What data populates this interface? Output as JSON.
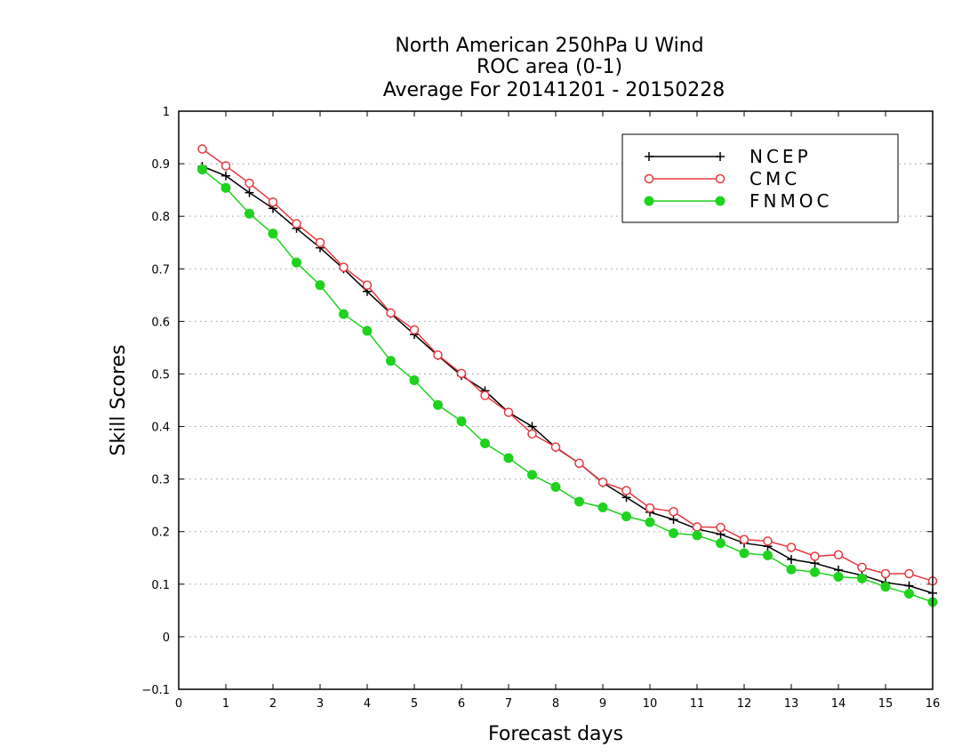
{
  "chart_data": {
    "type": "line",
    "title": [
      "North American 250hPa U Wind",
      "ROC area (0-1)",
      "Average For 20141201 - 20150228"
    ],
    "xlabel": "Forecast days",
    "ylabel": "Skill Scores",
    "xlim": [
      0,
      16
    ],
    "ylim": [
      -0.1,
      1
    ],
    "xticks": [
      0,
      1,
      2,
      3,
      4,
      5,
      6,
      7,
      8,
      9,
      10,
      11,
      12,
      13,
      14,
      15,
      16
    ],
    "yticks": [
      -0.1,
      0,
      0.1,
      0.2,
      0.3,
      0.4,
      0.5,
      0.6,
      0.7,
      0.8,
      0.9,
      1
    ],
    "ytick_labels": [
      "−0.1",
      "0",
      "0.1",
      "0.2",
      "0.3",
      "0.4",
      "0.5",
      "0.6",
      "0.7",
      "0.8",
      "0.9",
      "1"
    ],
    "grid": "horizontal dotted",
    "legend_position": "top-right",
    "x": [
      0.5,
      1.0,
      1.5,
      2.0,
      2.5,
      3.0,
      3.5,
      4.0,
      4.5,
      5.0,
      5.5,
      6.0,
      6.5,
      7.0,
      7.5,
      8.0,
      8.5,
      9.0,
      9.5,
      10.0,
      10.5,
      11.0,
      11.5,
      12.0,
      12.5,
      13.0,
      13.5,
      14.0,
      14.5,
      15.0,
      15.5,
      16.0
    ],
    "series": [
      {
        "name": "NCEP",
        "color": "#000000",
        "marker": "plus",
        "values": [
          0.895,
          0.877,
          0.845,
          0.815,
          0.777,
          0.74,
          0.7,
          0.657,
          0.615,
          0.575,
          0.535,
          0.497,
          0.468,
          0.427,
          0.4,
          0.36,
          0.33,
          0.293,
          0.265,
          0.237,
          0.223,
          0.205,
          0.195,
          0.178,
          0.172,
          0.147,
          0.14,
          0.127,
          0.117,
          0.103,
          0.097,
          0.083
        ]
      },
      {
        "name": "CMC",
        "color": "#e8393f",
        "marker": "open-circle",
        "values": [
          0.928,
          0.896,
          0.863,
          0.827,
          0.786,
          0.75,
          0.703,
          0.669,
          0.616,
          0.584,
          0.536,
          0.501,
          0.459,
          0.427,
          0.386,
          0.361,
          0.33,
          0.294,
          0.278,
          0.245,
          0.238,
          0.209,
          0.208,
          0.185,
          0.182,
          0.17,
          0.153,
          0.156,
          0.132,
          0.12,
          0.12,
          0.106
        ]
      },
      {
        "name": "FNMOC",
        "color": "#1ed21e",
        "marker": "filled-circle",
        "values": [
          0.889,
          0.854,
          0.805,
          0.767,
          0.712,
          0.669,
          0.614,
          0.582,
          0.525,
          0.488,
          0.441,
          0.41,
          0.368,
          0.34,
          0.308,
          0.285,
          0.257,
          0.246,
          0.229,
          0.218,
          0.197,
          0.193,
          0.178,
          0.159,
          0.155,
          0.128,
          0.123,
          0.114,
          0.111,
          0.095,
          0.082,
          0.066
        ]
      }
    ]
  }
}
